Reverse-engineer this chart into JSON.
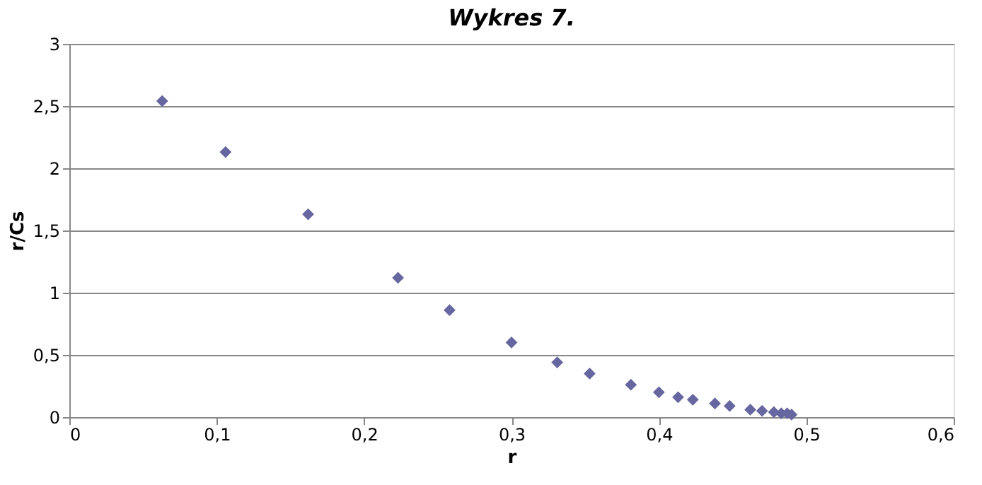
{
  "chart_data": {
    "type": "scatter",
    "title": "Wykres 7.",
    "xlabel": "r",
    "ylabel": "r/Cs",
    "x": [
      0.063,
      0.106,
      0.162,
      0.223,
      0.258,
      0.3,
      0.331,
      0.353,
      0.381,
      0.4,
      0.413,
      0.423,
      0.438,
      0.448,
      0.462,
      0.47,
      0.478,
      0.483,
      0.487,
      0.49
    ],
    "series": [
      {
        "color": "#6666a0",
        "values": [
          2.54,
          2.13,
          1.63,
          1.12,
          0.86,
          0.6,
          0.44,
          0.35,
          0.26,
          0.2,
          0.16,
          0.14,
          0.11,
          0.09,
          0.06,
          0.05,
          0.04,
          0.03,
          0.03,
          0.02
        ]
      }
    ],
    "xlim": [
      0,
      0.6
    ],
    "xticks": [
      {
        "value": 0,
        "label": "0"
      },
      {
        "value": 0.1,
        "label": "0,1"
      },
      {
        "value": 0.2,
        "label": "0,2"
      },
      {
        "value": 0.3,
        "label": "0,3"
      },
      {
        "value": 0.4,
        "label": "0,4"
      },
      {
        "value": 0.5,
        "label": "0,5"
      },
      {
        "value": 0.6,
        "label": "0,6"
      }
    ],
    "ylim": [
      0,
      3
    ],
    "yticks": [
      {
        "value": 0,
        "label": "0"
      },
      {
        "value": 0.5,
        "label": "0,5"
      },
      {
        "value": 1,
        "label": "1"
      },
      {
        "value": 1.5,
        "label": "1,5"
      },
      {
        "value": 2,
        "label": "2"
      },
      {
        "value": 2.5,
        "label": "2,5"
      },
      {
        "value": 3,
        "label": "3"
      }
    ],
    "grid": "y",
    "marker": "diamond"
  }
}
